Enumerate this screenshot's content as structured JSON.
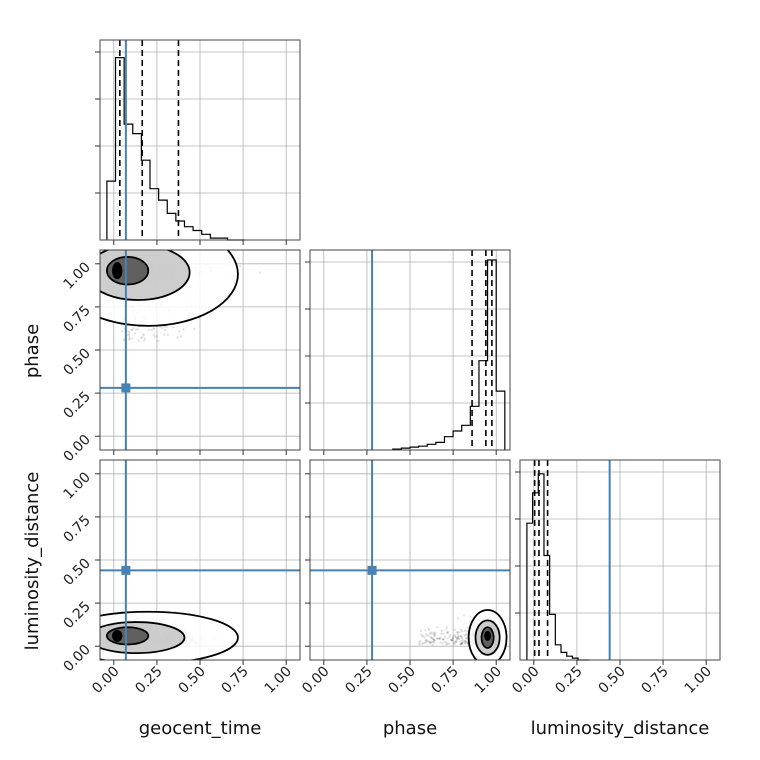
{
  "chart_data": {
    "type": "corner",
    "parameters": [
      {
        "label": "geocent_time",
        "range": [
          -0.08,
          1.08
        ],
        "ticks": [
          "0.00",
          "0.25",
          "0.50",
          "0.75",
          "1.00"
        ],
        "tick_values": [
          0,
          0.25,
          0.5,
          0.75,
          1.0
        ]
      },
      {
        "label": "phase",
        "range": [
          -0.08,
          1.08
        ],
        "ticks": [
          "0.00",
          "0.25",
          "0.50",
          "0.75",
          "1.00"
        ],
        "tick_values": [
          0,
          0.25,
          0.5,
          0.75,
          1.0
        ]
      },
      {
        "label": "luminosity_distance",
        "range": [
          -0.08,
          1.08
        ],
        "ticks": [
          "0.00",
          "0.25",
          "0.50",
          "0.75",
          "1.00"
        ],
        "tick_values": [
          0,
          0.25,
          0.5,
          0.75,
          1.0
        ]
      }
    ],
    "truths": [
      0.07,
      0.28,
      0.44
    ],
    "truth_color": "#4682b4",
    "quantiles": [
      [
        0.035,
        0.165,
        0.375
      ],
      [
        0.86,
        0.94,
        0.975
      ],
      [
        0.005,
        0.03,
        0.08
      ]
    ],
    "histograms": [
      {
        "x0": -0.04,
        "bin": 0.05,
        "heights": [
          0.31,
          0.96,
          0.61,
          0.56,
          0.42,
          0.27,
          0.21,
          0.14,
          0.1,
          0.07,
          0.05,
          0.03,
          0.01,
          0.01,
          0.0,
          0.0
        ]
      },
      {
        "x0": 0.4,
        "bin": 0.05,
        "heights": [
          0.005,
          0.01,
          0.015,
          0.02,
          0.03,
          0.04,
          0.07,
          0.1,
          0.13,
          0.23,
          0.47,
          1.0,
          0.31
        ]
      },
      {
        "x0": -0.04,
        "bin": 0.033,
        "heights": [
          0.72,
          0.88,
          0.98,
          0.55,
          0.24,
          0.08,
          0.04,
          0.02,
          0.01,
          0.0,
          0.0
        ]
      }
    ],
    "grid": true,
    "marginal_height": "normalized"
  }
}
